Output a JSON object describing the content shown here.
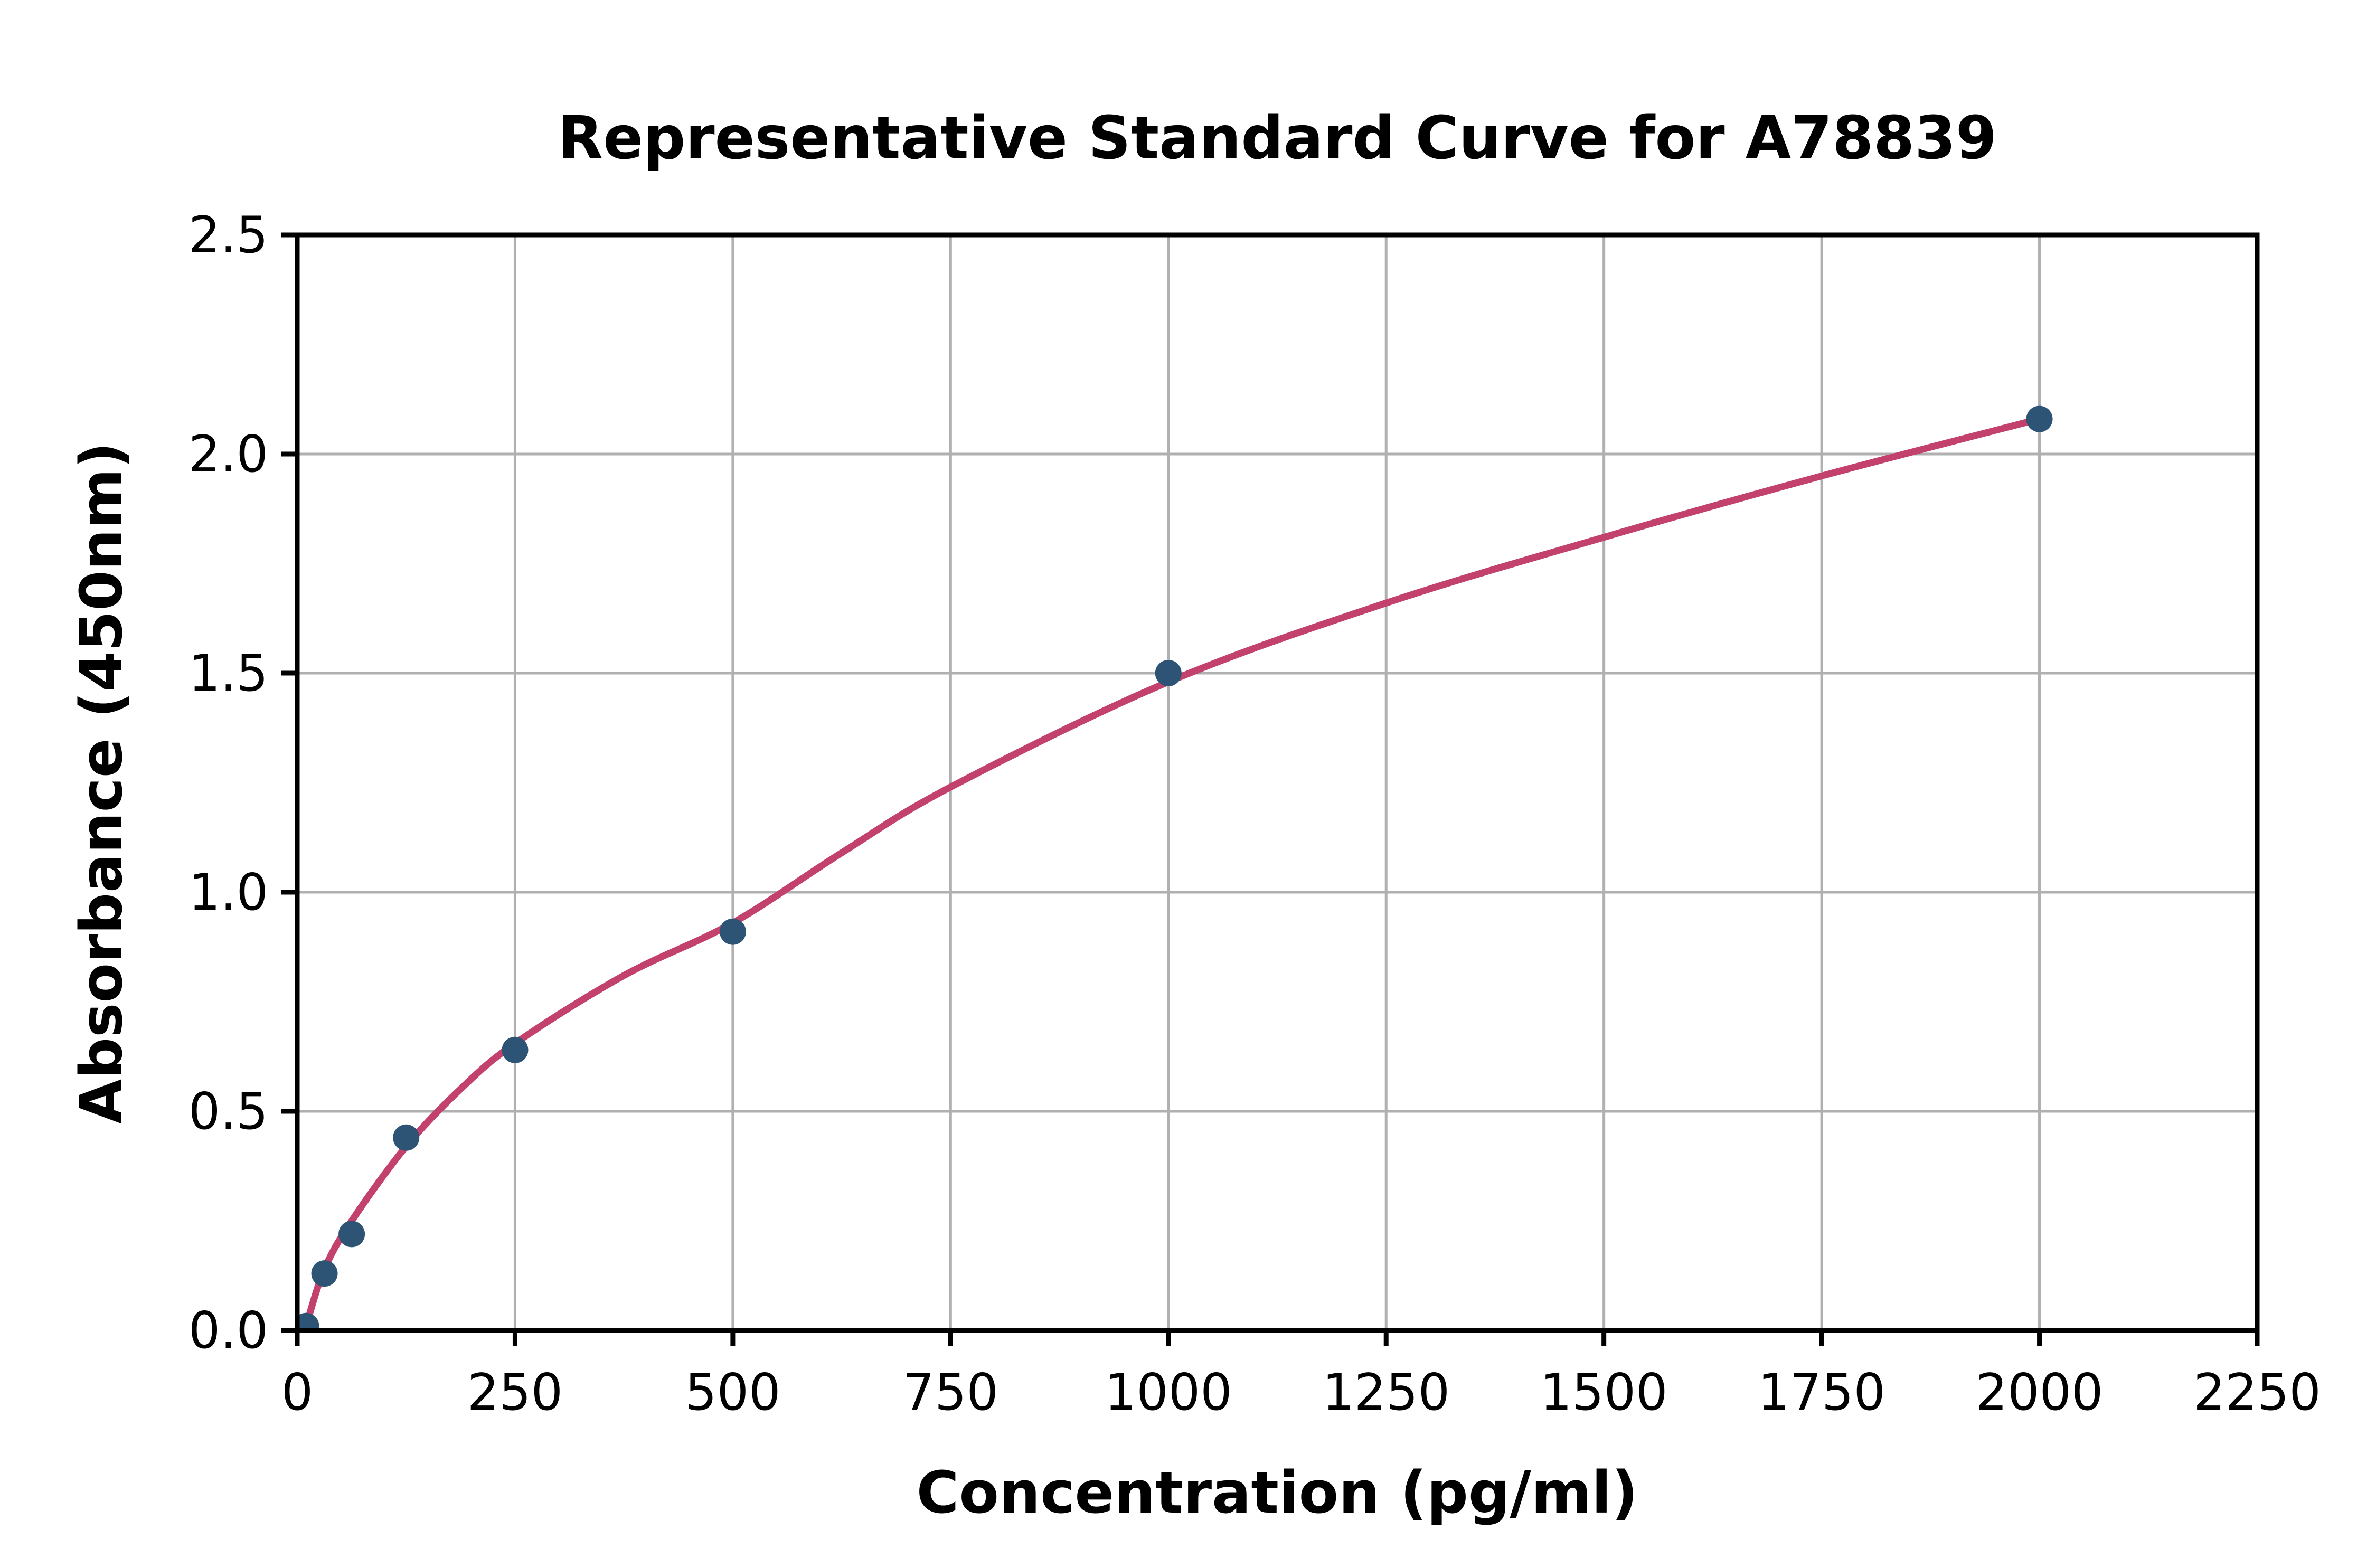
{
  "chart_data": {
    "type": "scatter",
    "title": "Representative Standard Curve for A78839",
    "xlabel": "Concentration (pg/ml)",
    "ylabel": "Absorbance (450nm)",
    "xlim": [
      0,
      2250
    ],
    "ylim": [
      0,
      2.5
    ],
    "grid": true,
    "legend": "none",
    "x_ticks": [
      0,
      250,
      500,
      750,
      1000,
      1250,
      1500,
      1750,
      2000,
      2250
    ],
    "x_tick_labels": [
      "0",
      "250",
      "500",
      "750",
      "1000",
      "1250",
      "1500",
      "1750",
      "2000",
      "2250"
    ],
    "y_ticks": [
      0.0,
      0.5,
      1.0,
      1.5,
      2.0,
      2.5
    ],
    "y_tick_labels": [
      "0.0",
      "0.5",
      "1.0",
      "1.5",
      "2.0",
      "2.5"
    ],
    "series": [
      {
        "kind": "scatter",
        "color": "#2d5475",
        "marker": "circle",
        "points": [
          [
            10,
            0.01
          ],
          [
            31.25,
            0.13
          ],
          [
            62.5,
            0.22
          ],
          [
            125,
            0.44
          ],
          [
            250,
            0.64
          ],
          [
            500,
            0.91
          ],
          [
            1000,
            1.5
          ],
          [
            2000,
            2.08
          ]
        ]
      },
      {
        "kind": "line",
        "color": "#c2426d",
        "points": [
          [
            10,
            0.01
          ],
          [
            31.25,
            0.14
          ],
          [
            62.5,
            0.25
          ],
          [
            125,
            0.42
          ],
          [
            187,
            0.55
          ],
          [
            250,
            0.655
          ],
          [
            375,
            0.81
          ],
          [
            500,
            0.93
          ],
          [
            625,
            1.09
          ],
          [
            750,
            1.24
          ],
          [
            1000,
            1.48
          ],
          [
            1250,
            1.66
          ],
          [
            1500,
            1.81
          ],
          [
            1750,
            1.95
          ],
          [
            2000,
            2.08
          ]
        ]
      }
    ],
    "colors": {
      "marker": "#2d5475",
      "curve": "#c2426d",
      "grid": "#b0b0b0",
      "axis": "#000000",
      "background": "#ffffff"
    }
  }
}
